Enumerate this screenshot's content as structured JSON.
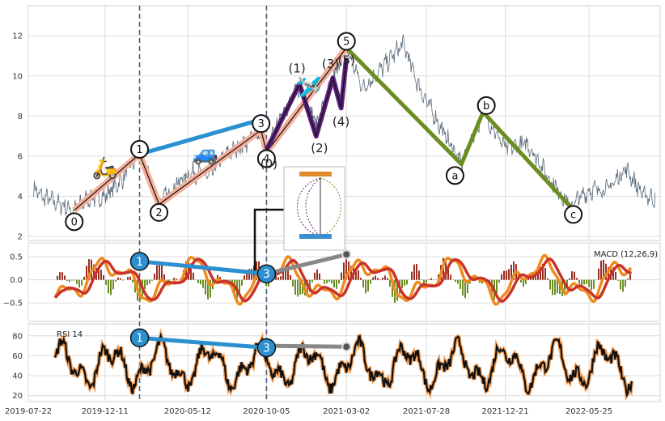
{
  "chart_data": {
    "type": "line",
    "colors": {
      "price": "#5b6a7a",
      "impulse": "#f4b09a",
      "subwave": "#5b1f7a",
      "correction": "#6b8e23",
      "blue_line": "#2b8fd0",
      "grey_line": "#888888",
      "macd_line": "#f08a1c",
      "signal_line": "#c8342a",
      "hist_pos": "#9a2f20",
      "hist_neg": "#6b8e23",
      "rsi_line": "#111111",
      "rsi_glow": "#f5a15a",
      "vline": "#4a5e7a"
    },
    "x_ticks": [
      "2019-07-22",
      "2019-12-11",
      "2020-05-12",
      "2020-10-05",
      "2021-03-02",
      "2021-07-28",
      "2021-12-21",
      "2022-05-25"
    ],
    "vlines": [
      "2020-02-13",
      "2020-10-05"
    ],
    "panels": [
      {
        "id": "price",
        "ylim": [
          1.8,
          13.5
        ],
        "yticks": [
          "2",
          "4",
          "6",
          "8",
          "10",
          "12"
        ],
        "series": [],
        "waves": {
          "impulse": [
            {
              "label": "0",
              "x": "2019-10-15",
              "y": 3.3
            },
            {
              "label": "1",
              "x": "2020-02-13",
              "y": 6.1
            },
            {
              "label": "2",
              "x": "2020-03-20",
              "y": 3.6
            },
            {
              "label": "3",
              "x": "2020-09-25",
              "y": 7.3
            },
            {
              "label": "4",
              "x": "2020-10-05",
              "y": 6.2
            },
            {
              "label": "5",
              "x": "2021-03-02",
              "y": 11.4
            }
          ],
          "subwaves": [
            {
              "label": "(0)",
              "x": "2020-10-05",
              "y": 6.3
            },
            {
              "label": "(1)",
              "x": "2020-12-05",
              "y": 9.6
            },
            {
              "label": "(2)",
              "x": "2021-01-05",
              "y": 7.0
            },
            {
              "label": "(3)",
              "x": "2021-02-05",
              "y": 9.9
            },
            {
              "label": "(4)",
              "x": "2021-02-20",
              "y": 8.4
            },
            {
              "label": "(5)",
              "x": "2021-03-02",
              "y": 10.9
            }
          ],
          "correction": [
            {
              "label": "5",
              "x": "2021-03-02",
              "y": 11.4
            },
            {
              "label": "a",
              "x": "2021-10-01",
              "y": 5.6
            },
            {
              "label": "b",
              "x": "2021-11-10",
              "y": 8.2
            },
            {
              "label": "c",
              "x": "2022-04-20",
              "y": 3.5
            }
          ],
          "blue_line": [
            {
              "x": "2020-02-13",
              "y": 6.1
            },
            {
              "x": "2020-10-05",
              "y": 7.9
            }
          ]
        },
        "emoji": [
          "🛵",
          "🚙",
          "🛩️"
        ]
      },
      {
        "id": "macd",
        "label": "MACD (12,26,9)",
        "ylim": [
          -0.9,
          0.8
        ],
        "yticks": [
          "0.5",
          "0.0",
          "−0.5"
        ],
        "markers": [
          {
            "label": "1",
            "x": "2020-02-13",
            "y": 0.4
          },
          {
            "label": "3",
            "x": "2020-10-05",
            "y": 0.13
          }
        ],
        "grey_line": [
          {
            "x": "2020-10-05",
            "y": 0.13
          },
          {
            "x": "2021-03-02",
            "y": 0.55
          }
        ]
      },
      {
        "id": "rsi",
        "label": "RSI 14",
        "ylim": [
          14,
          92
        ],
        "yticks": [
          "80",
          "60",
          "40",
          "20"
        ],
        "markers": [
          {
            "label": "1",
            "x": "2020-02-13",
            "y": 78
          },
          {
            "label": "3",
            "x": "2020-10-05",
            "y": 68
          }
        ],
        "grey_line": [
          {
            "x": "2020-10-05",
            "y": 70
          },
          {
            "x": "2021-03-02",
            "y": 69
          }
        ]
      }
    ]
  }
}
